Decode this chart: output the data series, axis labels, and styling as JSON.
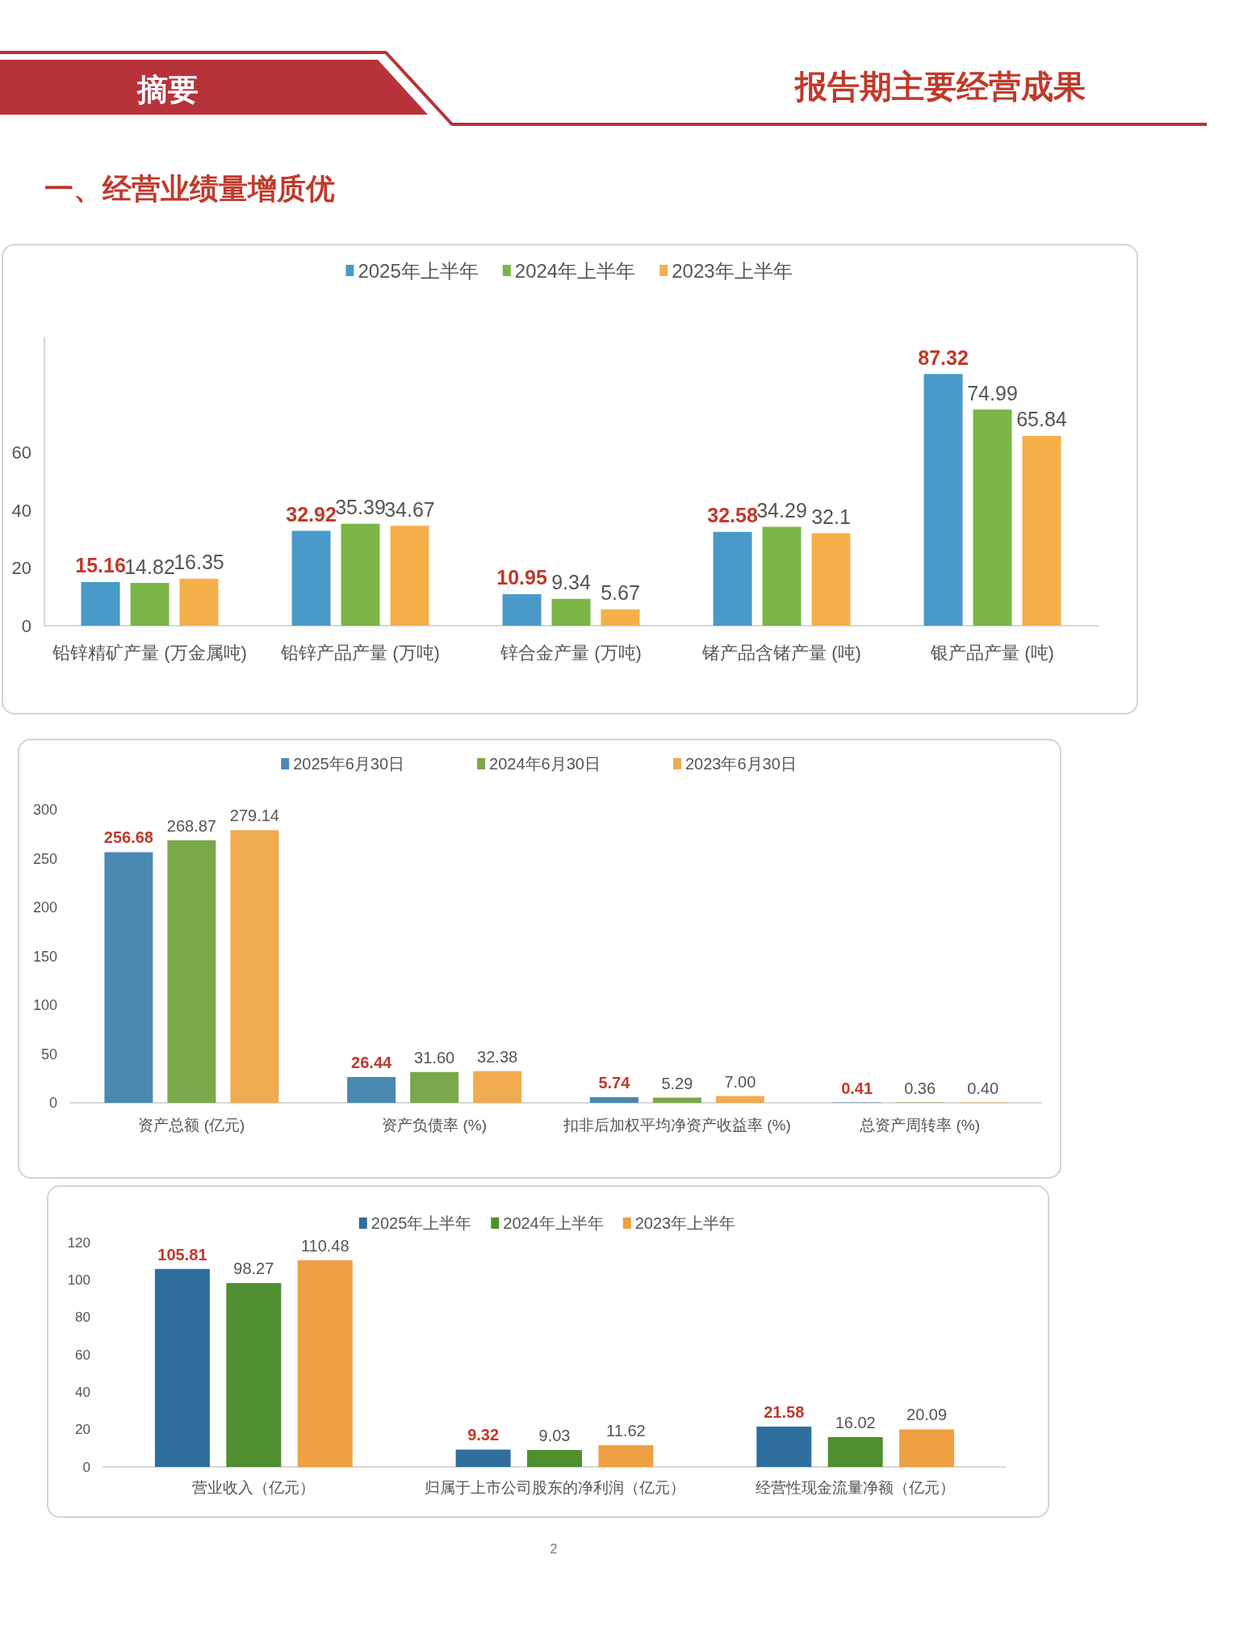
{
  "chart_data": [
    {
      "type": "bar",
      "title": "一、经营业绩量增质优",
      "annotations": [
        "摘要",
        "报告期主要经营成果"
      ],
      "categories": [
        "铅锌精矿产量 (万金属吨)",
        "铅锌产品产量 (万吨)",
        "锌合金产量 (万吨)",
        "锗产品含锗产量 (吨)",
        "银产品产量 (吨)"
      ],
      "series": [
        {
          "name": "2025年上半年",
          "color": "#4a9ac9",
          "values": [
            15.16,
            32.92,
            10.95,
            32.58,
            87.32
          ]
        },
        {
          "name": "2024年上半年",
          "color": "#7ab648",
          "values": [
            14.82,
            35.39,
            9.34,
            34.29,
            74.99
          ]
        },
        {
          "name": "2023年上半年",
          "color": "#f5b04a",
          "values": [
            16.35,
            34.67,
            5.67,
            32.1,
            65.84
          ]
        }
      ],
      "ylim": [
        0,
        100
      ],
      "yticks": [
        0,
        20,
        40,
        60
      ],
      "data_labels": true,
      "legend": "top"
    },
    {
      "type": "bar",
      "categories": [
        "资产总额 (亿元)",
        "资产负债率 (%)",
        "扣非后加权平均净资产收益率 (%)",
        "总资产周转率 (%)"
      ],
      "series": [
        {
          "name": "2025年6月30日",
          "color": "#4a89b2",
          "values": [
            256.68,
            26.44,
            5.74,
            0.41
          ],
          "value_labels": [
            "256.68",
            "26.44",
            "5.74",
            "0.41"
          ]
        },
        {
          "name": "2024年6月30日",
          "color": "#7aa84a",
          "values": [
            268.87,
            31.6,
            5.29,
            0.36
          ],
          "value_labels": [
            "268.87",
            "31.60",
            "5.29",
            "0.36"
          ]
        },
        {
          "name": "2023年6月30日",
          "color": "#f0ac50",
          "values": [
            279.14,
            32.38,
            7,
            0.4
          ],
          "value_labels": [
            "279.14",
            "32.38",
            "7.00",
            "0.40"
          ]
        }
      ],
      "ylim": [
        0,
        300
      ],
      "yticks": [
        0,
        50,
        100,
        150,
        200,
        250,
        300
      ],
      "legend": "top"
    },
    {
      "type": "bar",
      "annotations": [
        "2"
      ],
      "categories": [
        "营业收入（亿元）",
        "归属于上市公司股东的净利润（亿元）",
        "经营性现金流量净额（亿元）"
      ],
      "series": [
        {
          "name": "2025年上半年",
          "color": "#2f6f9f",
          "values": [
            105.81,
            9.32,
            21.58
          ]
        },
        {
          "name": "2024年上半年",
          "color": "#4f8f2f",
          "values": [
            98.27,
            9.03,
            16.02
          ]
        },
        {
          "name": "2023年上半年",
          "color": "#eea043",
          "values": [
            110.48,
            11.62,
            20.09
          ]
        }
      ],
      "ylim": [
        0,
        120
      ],
      "yticks": [
        0,
        20,
        40,
        60,
        80,
        100,
        120
      ],
      "data_labels": true,
      "legend": "top"
    }
  ]
}
